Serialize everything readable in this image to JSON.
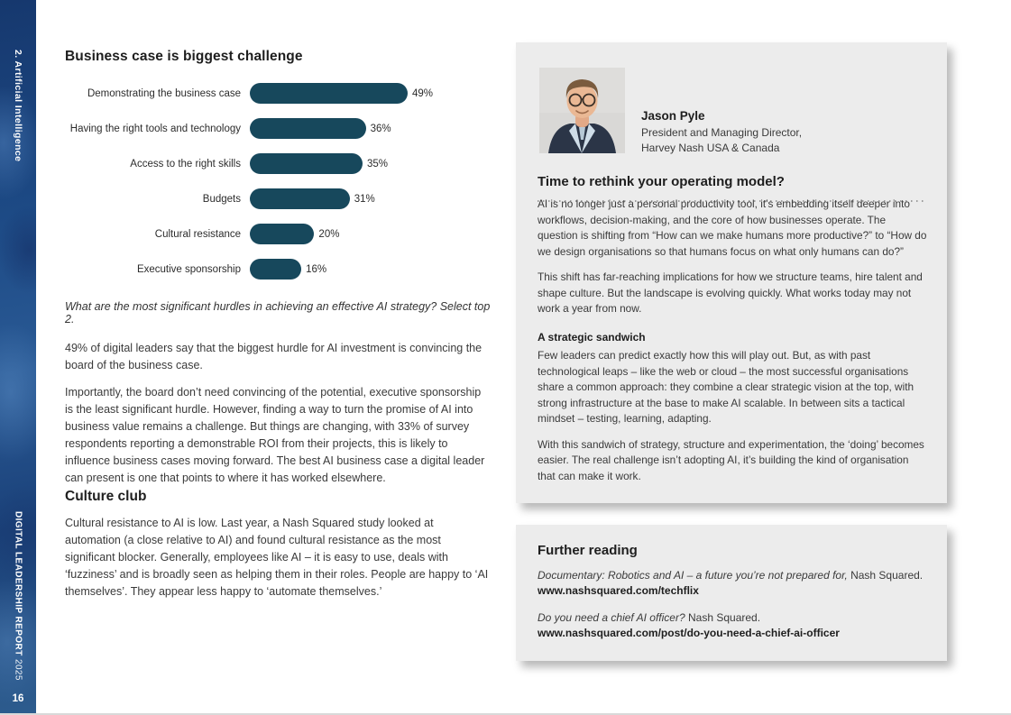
{
  "sidebar": {
    "section_label": "2. Artificial Intelligence",
    "report_title": "DIGITAL LEADERSHIP REPORT",
    "report_year": "2025",
    "page_number": "16"
  },
  "chart_data": {
    "type": "bar",
    "title": "Business case is biggest challenge",
    "categories": [
      "Demonstrating the business case",
      "Having the right tools and technology",
      "Access to the right skills",
      "Budgets",
      "Cultural resistance",
      "Executive sponsorship"
    ],
    "values": [
      49,
      36,
      35,
      31,
      20,
      16
    ],
    "value_suffix": "%",
    "bar_color": "#17485c",
    "xlim": [
      0,
      49
    ],
    "orientation": "horizontal",
    "grid": false,
    "legend": false,
    "caption": "What are the most significant hurdles in achieving an effective AI strategy? Select top 2."
  },
  "article": {
    "paragraphs": [
      "49% of digital leaders say that the biggest hurdle for AI investment is convincing the board of the business case.",
      "Importantly, the board don’t need convincing of the potential, executive sponsorship is the least significant hurdle. However, finding a way to turn the promise of AI into business value remains a challenge. But things are changing, with 33% of survey respondents reporting a demonstrable ROI from their projects, this is likely to influence business cases moving forward. The best AI business case a digital leader can present is one that points to where it has worked elsewhere."
    ],
    "culture_heading": "Culture club",
    "culture_paragraph": "Cultural resistance to AI is low. Last year, a Nash Squared study looked at automation (a close relative to AI) and found cultural resistance as the most significant blocker. Generally, employees like AI – it is easy to use, deals with ‘fuzziness’ and is broadly seen as helping them in their roles. People are happy to ‘AI themselves’. They appear less happy to ‘automate themselves.’"
  },
  "profile_panel": {
    "name": "Jason Pyle",
    "title_line1": "President and Managing Director,",
    "title_line2": "Harvey Nash USA & Canada",
    "heading": "Time to rethink your operating model?",
    "paragraphs": [
      "AI is no longer just a personal productivity tool, it’s embedding itself deeper into workflows, decision-making, and the core of how businesses operate. The question is shifting from “How can we make humans more productive?” to “How do we design organisations so that humans focus on what only humans can do?”",
      "This shift has far-reaching implications for how we structure teams, hire talent and shape culture. But the landscape is evolving quickly. What works today may not work a year from now."
    ],
    "subheading": "A strategic sandwich",
    "sub_paragraphs": [
      "Few leaders can predict exactly how this will play out. But, as with past technological leaps – like the web or cloud – the most successful organisations share a common approach: they combine a clear strategic vision at the top, with strong infrastructure at the base to make AI scalable. In between sits a tactical mindset – testing, learning, adapting.",
      "With this sandwich of strategy, structure and experimentation, the ‘doing’ becomes easier. The real challenge isn’t adopting AI, it’s building the kind of organisation that can make it work."
    ]
  },
  "further_reading": {
    "heading": "Further reading",
    "items": [
      {
        "title": "Documentary: Robotics and AI – a future you’re not prepared for,",
        "source": " Nash Squared.",
        "url": "www.nashsquared.com/techflix"
      },
      {
        "title": "Do you need a chief AI officer?",
        "source": " Nash Squared.",
        "url": "www.nashsquared.com/post/do-you-need-a-chief-ai-officer"
      }
    ]
  }
}
